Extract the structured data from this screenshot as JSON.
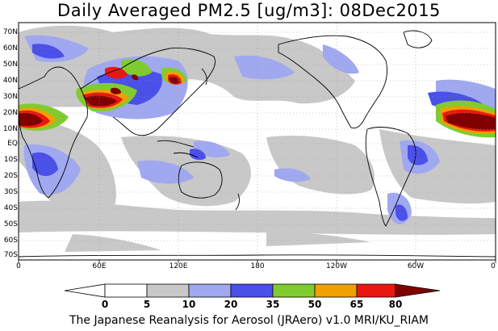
{
  "title": "Daily Averaged PM2.5 [ug/m3]: 08Dec2015",
  "footer": "The Japanese Reanalysis for Aerosol (JRAero) v1.0 MRI/KU_RIAM",
  "lat_labels": [
    "70N",
    "60N",
    "50N",
    "40N",
    "30N",
    "20N",
    "10N",
    "EQ",
    "10S",
    "20S",
    "30S",
    "40S",
    "50S",
    "60S",
    "70S"
  ],
  "lon_labels": [
    "0",
    "60E",
    "120E",
    "180",
    "120W",
    "60W",
    "0"
  ],
  "colorbar": {
    "labels": [
      "0",
      "5",
      "10",
      "20",
      "35",
      "50",
      "65",
      "80"
    ],
    "colors": [
      "#ffffff",
      "#c8c8c8",
      "#a0a8f0",
      "#4a50e8",
      "#80cc30",
      "#f0a000",
      "#e81810",
      "#800000"
    ]
  }
}
